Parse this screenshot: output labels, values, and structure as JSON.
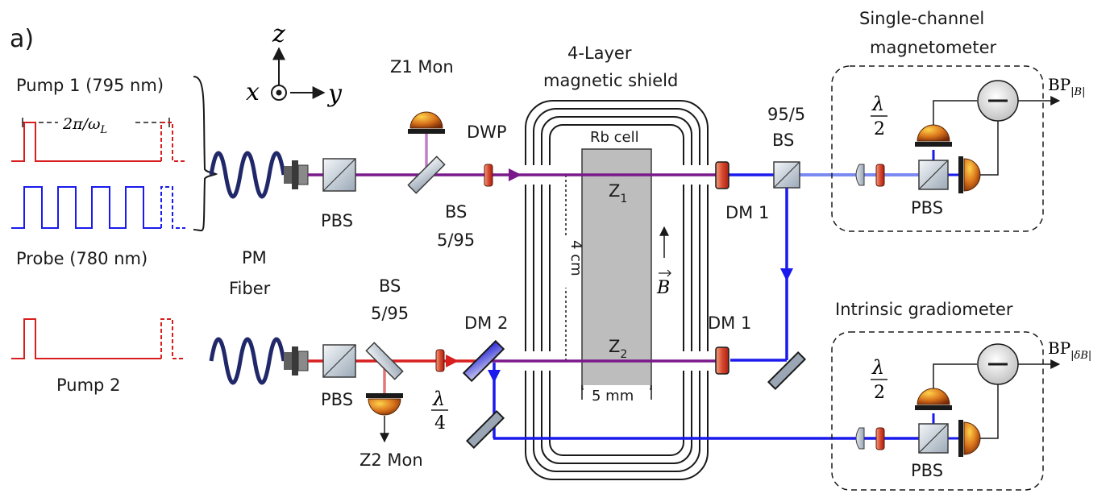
{
  "panel_label": "a)",
  "axes": {
    "z": "z",
    "x": "x",
    "y": "y"
  },
  "pulses": {
    "pump1": "Pump 1 (795 nm)",
    "period_prefix": "2π/ω",
    "period_sub": "L",
    "probe": "Probe (780 nm)",
    "pump2": "Pump 2"
  },
  "fiber": {
    "line1": "PM",
    "line2": "Fiber"
  },
  "components": {
    "pbs_top": "PBS",
    "pbs_bottom": "PBS",
    "bs_top_1": "BS",
    "bs_top_2": "5/95",
    "bs_bot_1": "BS",
    "bs_bot_2": "5/95",
    "z1mon": "Z1 Mon",
    "z2mon": "Z2 Mon",
    "dwp": "DWP",
    "qwp_num": "λ",
    "qwp_den": "4",
    "dm2": "DM 2",
    "dm1_top": "DM 1",
    "dm1_bot": "DM 1",
    "bs955_1": "95/5",
    "bs955_2": "BS"
  },
  "shield": {
    "title1": "4-Layer",
    "title2": "magnetic shield",
    "cell": "Rb cell",
    "z1": "Z",
    "z1_sub": "1",
    "z2": "Z",
    "z2_sub": "2",
    "height": "4 cm",
    "width": "5 mm",
    "field": "B"
  },
  "single": {
    "title1": "Single-channel",
    "title2": "magnetometer",
    "hwp_num": "λ",
    "hwp_den": "2",
    "pbs": "PBS",
    "output": "BP",
    "output_sub": "|B|"
  },
  "gradio": {
    "title": "Intrinsic gradiometer",
    "hwp_num": "λ",
    "hwp_den": "2",
    "pbs": "PBS",
    "output": "BP",
    "output_sub": "|δB|"
  },
  "colors": {
    "pump": "#d81e1e",
    "probe": "#1a1aee",
    "combined": "#7a1a8a",
    "monitor": "#c080c8",
    "monitor2": "#e07878",
    "probe_light": "#7a8af0"
  }
}
